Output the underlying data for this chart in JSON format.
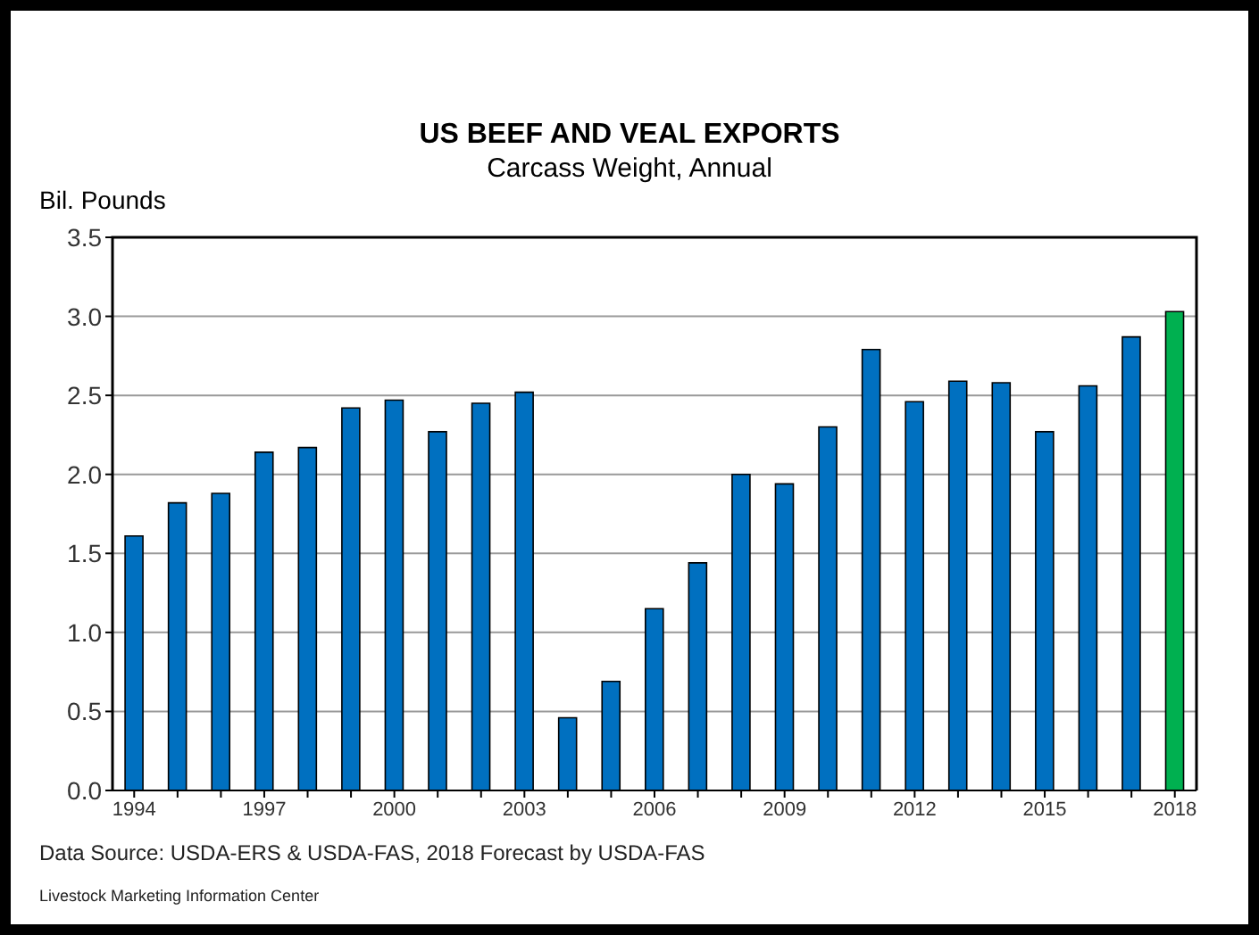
{
  "chart_data": {
    "type": "bar",
    "title": "US BEEF AND VEAL EXPORTS",
    "subtitle": "Carcass Weight, Annual",
    "ylabel": "Bil. Pounds",
    "categories": [
      "1994",
      null,
      null,
      "1997",
      null,
      null,
      "2000",
      null,
      null,
      "2003",
      null,
      null,
      "2006",
      null,
      null,
      "2009",
      null,
      null,
      "2012",
      null,
      null,
      "2015",
      null,
      null,
      "2018"
    ],
    "values": [
      1.61,
      1.82,
      1.88,
      2.14,
      2.17,
      2.42,
      2.47,
      2.27,
      2.45,
      2.52,
      0.46,
      0.69,
      1.15,
      1.44,
      2.0,
      1.94,
      2.3,
      2.79,
      2.46,
      2.59,
      2.58,
      2.27,
      2.56,
      2.87,
      3.03
    ],
    "colors": [
      "#0070c0",
      "#0070c0",
      "#0070c0",
      "#0070c0",
      "#0070c0",
      "#0070c0",
      "#0070c0",
      "#0070c0",
      "#0070c0",
      "#0070c0",
      "#0070c0",
      "#0070c0",
      "#0070c0",
      "#0070c0",
      "#0070c0",
      "#0070c0",
      "#0070c0",
      "#0070c0",
      "#0070c0",
      "#0070c0",
      "#0070c0",
      "#0070c0",
      "#0070c0",
      "#0070c0",
      "#00b050"
    ],
    "ylim": [
      0,
      3.5
    ],
    "yticks": [
      {
        "value": 0,
        "label": "0.0"
      },
      {
        "value": 0.5,
        "label": "0.5"
      },
      {
        "value": 1,
        "label": "1.0"
      },
      {
        "value": 1.5,
        "label": "1.5"
      },
      {
        "value": 2,
        "label": "2.0"
      },
      {
        "value": 2.5,
        "label": "2.5"
      },
      {
        "value": 3,
        "label": "3.0"
      },
      {
        "value": 3.5,
        "label": "3.5"
      }
    ],
    "grid": "y",
    "annotations": [
      "Data Source:  USDA-ERS & USDA-FAS, 2018 Forecast by USDA-FAS",
      "Livestock Marketing Information Center"
    ]
  }
}
